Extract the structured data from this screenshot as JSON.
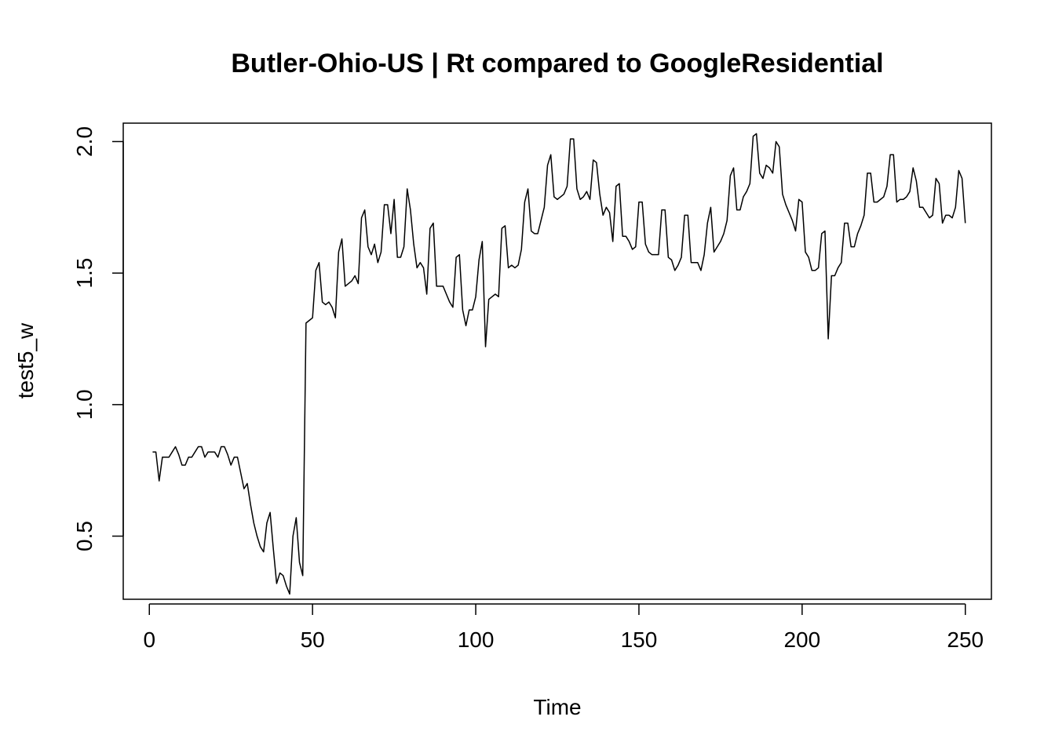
{
  "chart_data": {
    "type": "line",
    "title": "Butler-Ohio-US | Rt compared to GoogleResidential",
    "xlabel": "Time",
    "ylabel": "test5_w",
    "xlim": [
      -8,
      258
    ],
    "ylim": [
      0.26,
      2.07
    ],
    "x_ticks": [
      0,
      50,
      100,
      150,
      200,
      250
    ],
    "y_ticks": [
      0.5,
      1.0,
      1.5,
      2.0
    ],
    "x_tick_labels": [
      "0",
      "50",
      "100",
      "150",
      "200",
      "250"
    ],
    "y_tick_labels": [
      "0.5",
      "1.0",
      "1.5",
      "2.0"
    ],
    "grid": false,
    "series": [
      {
        "x_start": 1,
        "values": [
          0.82,
          0.82,
          0.71,
          0.8,
          0.8,
          0.8,
          0.82,
          0.84,
          0.81,
          0.77,
          0.77,
          0.8,
          0.8,
          0.82,
          0.84,
          0.84,
          0.8,
          0.82,
          0.82,
          0.82,
          0.8,
          0.84,
          0.84,
          0.81,
          0.77,
          0.8,
          0.8,
          0.74,
          0.68,
          0.7,
          0.62,
          0.55,
          0.5,
          0.46,
          0.44,
          0.55,
          0.59,
          0.45,
          0.32,
          0.36,
          0.35,
          0.31,
          0.28,
          0.5,
          0.57,
          0.4,
          0.35,
          1.31,
          1.32,
          1.33,
          1.51,
          1.54,
          1.39,
          1.38,
          1.39,
          1.37,
          1.33,
          1.58,
          1.63,
          1.45,
          1.46,
          1.47,
          1.49,
          1.46,
          1.71,
          1.74,
          1.6,
          1.57,
          1.61,
          1.54,
          1.58,
          1.76,
          1.76,
          1.65,
          1.78,
          1.56,
          1.56,
          1.6,
          1.82,
          1.74,
          1.61,
          1.52,
          1.54,
          1.52,
          1.42,
          1.67,
          1.69,
          1.45,
          1.45,
          1.45,
          1.42,
          1.39,
          1.37,
          1.56,
          1.57,
          1.36,
          1.3,
          1.36,
          1.36,
          1.41,
          1.55,
          1.62,
          1.22,
          1.4,
          1.41,
          1.42,
          1.41,
          1.67,
          1.68,
          1.52,
          1.53,
          1.52,
          1.53,
          1.59,
          1.77,
          1.82,
          1.66,
          1.65,
          1.65,
          1.7,
          1.75,
          1.91,
          1.95,
          1.79,
          1.78,
          1.79,
          1.8,
          1.83,
          2.01,
          2.01,
          1.82,
          1.78,
          1.79,
          1.81,
          1.78,
          1.93,
          1.92,
          1.8,
          1.72,
          1.75,
          1.73,
          1.62,
          1.83,
          1.84,
          1.64,
          1.64,
          1.62,
          1.59,
          1.6,
          1.77,
          1.77,
          1.61,
          1.58,
          1.57,
          1.57,
          1.57,
          1.74,
          1.74,
          1.56,
          1.55,
          1.51,
          1.53,
          1.56,
          1.72,
          1.72,
          1.54,
          1.54,
          1.54,
          1.51,
          1.57,
          1.69,
          1.75,
          1.58,
          1.6,
          1.62,
          1.65,
          1.7,
          1.87,
          1.9,
          1.74,
          1.74,
          1.79,
          1.81,
          1.84,
          2.02,
          2.03,
          1.88,
          1.86,
          1.91,
          1.9,
          1.88,
          2.0,
          1.98,
          1.8,
          1.76,
          1.73,
          1.7,
          1.66,
          1.78,
          1.77,
          1.58,
          1.56,
          1.51,
          1.51,
          1.52,
          1.65,
          1.66,
          1.25,
          1.49,
          1.49,
          1.52,
          1.54,
          1.69,
          1.69,
          1.6,
          1.6,
          1.65,
          1.68,
          1.72,
          1.88,
          1.88,
          1.77,
          1.77,
          1.78,
          1.79,
          1.83,
          1.95,
          1.95,
          1.77,
          1.78,
          1.78,
          1.79,
          1.81,
          1.9,
          1.85,
          1.75,
          1.75,
          1.73,
          1.71,
          1.72,
          1.86,
          1.84,
          1.69,
          1.72,
          1.72,
          1.71,
          1.75,
          1.89,
          1.86,
          1.69
        ]
      }
    ]
  }
}
